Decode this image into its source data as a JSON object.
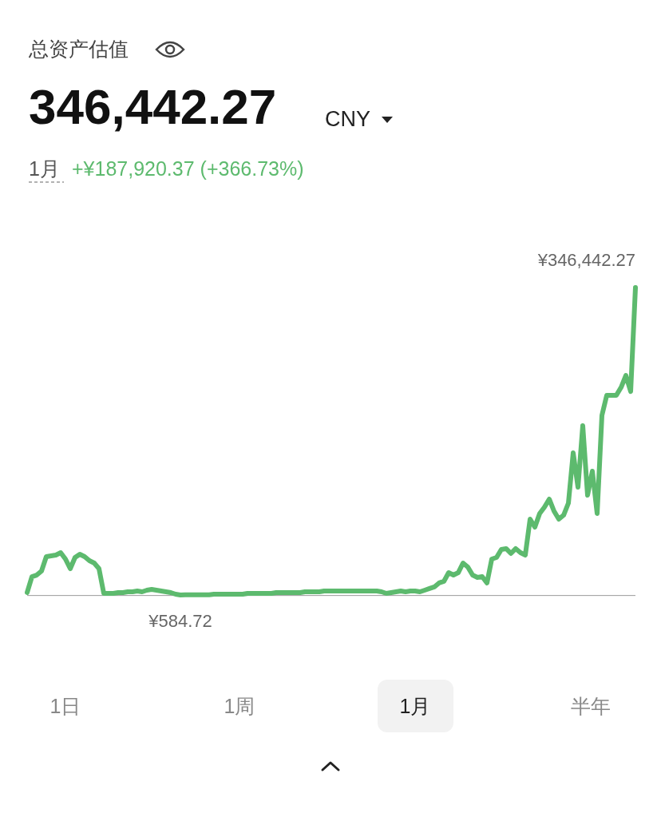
{
  "chart_data": {
    "type": "line",
    "title": "总资产估值",
    "categories": [
      null,
      null,
      null,
      null,
      null,
      null,
      null,
      null,
      null,
      null,
      null,
      null,
      null,
      null,
      null,
      null,
      null,
      null,
      null,
      null,
      null,
      null,
      null,
      null,
      null,
      null,
      null,
      null,
      null,
      null,
      null,
      null,
      null,
      null,
      null,
      null,
      null,
      null,
      null,
      null,
      null,
      null,
      null,
      null,
      null,
      null,
      null,
      null,
      null,
      null,
      null,
      null,
      null,
      null,
      null,
      null,
      null,
      null,
      null,
      null,
      null,
      null,
      null,
      null,
      null,
      null,
      null,
      null,
      null,
      null,
      null,
      null,
      null,
      null,
      null,
      null,
      null,
      null,
      null,
      null,
      null,
      null,
      null,
      null,
      null,
      null,
      null,
      null,
      null,
      null,
      null,
      null,
      null,
      null,
      null,
      null,
      null,
      null,
      null,
      null,
      null,
      null,
      null,
      null,
      null,
      null,
      null,
      null,
      null,
      null,
      null,
      null,
      null,
      null,
      null,
      null,
      null,
      null,
      null,
      null,
      null,
      null,
      null,
      null,
      null,
      null,
      null,
      null
    ],
    "series": [
      {
        "color": "#5dba6e",
        "values": [
          3300,
          21200,
          23000,
          27500,
          43700,
          44600,
          45500,
          48200,
          41000,
          30200,
          42800,
          46400,
          43700,
          39200,
          36500,
          30200,
          2400,
          2400,
          2400,
          3300,
          3300,
          4200,
          4200,
          5100,
          4200,
          6000,
          6900,
          6000,
          5100,
          4200,
          3300,
          1500,
          584.72,
          900,
          900,
          900,
          900,
          900,
          900,
          1500,
          1500,
          1500,
          1500,
          1500,
          1500,
          1500,
          2400,
          2400,
          2400,
          2400,
          2400,
          2400,
          3300,
          3300,
          3300,
          3300,
          3300,
          3300,
          4200,
          4200,
          4200,
          4200,
          5100,
          5100,
          5100,
          5100,
          5100,
          5100,
          5100,
          5100,
          5100,
          5100,
          5100,
          5100,
          4200,
          2400,
          3300,
          4200,
          5100,
          4200,
          5100,
          5100,
          4200,
          6000,
          7800,
          9600,
          14100,
          15900,
          25700,
          23000,
          25700,
          36500,
          32000,
          23000,
          20300,
          21200,
          14100,
          41000,
          42800,
          51800,
          52700,
          47300,
          52700,
          48200,
          45500,
          85900,
          76900,
          92200,
          99400,
          108400,
          94900,
          85900,
          90400,
          103900,
          160400,
          121800,
          191000,
          112900,
          139800,
          92200,
          202600,
          225100,
          225100,
          225100,
          234100,
          247600,
          229600,
          346442.27
        ],
        "value_labels": [
          null,
          null,
          null,
          null,
          null,
          null,
          null,
          null,
          null,
          null,
          null,
          null,
          null,
          null,
          null,
          null,
          null,
          null,
          null,
          null,
          null,
          null,
          null,
          null,
          null,
          null,
          null,
          null,
          null,
          null,
          null,
          null,
          "¥584.72",
          null,
          null,
          null,
          null,
          null,
          null,
          null,
          null,
          null,
          null,
          null,
          null,
          null,
          null,
          null,
          null,
          null,
          null,
          null,
          null,
          null,
          null,
          null,
          null,
          null,
          null,
          null,
          null,
          null,
          null,
          null,
          null,
          null,
          null,
          null,
          null,
          null,
          null,
          null,
          null,
          null,
          null,
          null,
          null,
          null,
          null,
          null,
          null,
          null,
          null,
          null,
          null,
          null,
          null,
          null,
          null,
          null,
          null,
          null,
          null,
          null,
          null,
          null,
          null,
          null,
          null,
          null,
          null,
          null,
          null,
          null,
          null,
          null,
          null,
          null,
          null,
          null,
          null,
          null,
          null,
          null,
          null,
          null,
          null,
          null,
          null,
          null,
          null,
          null,
          null,
          null,
          null,
          null,
          null,
          "¥346,442.27"
        ]
      }
    ],
    "annotations": [
      "346,442.27",
      "CNY",
      "1月",
      "+¥187,920.37 (+366.73%)",
      "1日",
      "1周",
      "1月",
      "半年"
    ]
  }
}
